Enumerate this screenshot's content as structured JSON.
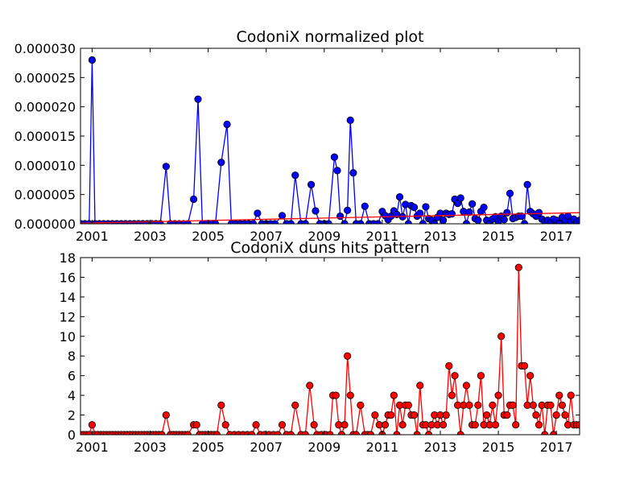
{
  "chart_data": [
    {
      "type": "line",
      "title": "CodoniX normalized plot",
      "xlabel": "",
      "ylabel": "",
      "xlim": [
        2000.6,
        2017.8
      ],
      "ylim": [
        0,
        3e-05
      ],
      "x_ticks": [
        2001,
        2003,
        2005,
        2007,
        2009,
        2011,
        2013,
        2015,
        2017
      ],
      "x_tick_labels": [
        "2001",
        "2003",
        "2005",
        "2007",
        "2009",
        "2011",
        "2013",
        "2015",
        "2017"
      ],
      "y_ticks": [
        0,
        5e-06,
        1e-05,
        1.5e-05,
        2e-05,
        2.5e-05,
        3e-05
      ],
      "y_tick_labels": [
        "0.000000",
        "0.000005",
        "0.000010",
        "0.000015",
        "0.000020",
        "0.000025",
        "0.000030"
      ],
      "grid": false,
      "series": [
        {
          "color": "#0000ff",
          "marker": "circle",
          "x": [
            2000.6,
            2000.75,
            2000.9,
            2001.0,
            2001.1,
            2001.25,
            2001.4,
            2001.55,
            2001.7,
            2001.85,
            2002.0,
            2002.15,
            2002.3,
            2002.45,
            2002.6,
            2002.75,
            2002.9,
            2003.05,
            2003.2,
            2003.35,
            2003.55,
            2003.7,
            2003.85,
            2004.0,
            2004.15,
            2004.3,
            2004.5,
            2004.65,
            2004.8,
            2004.95,
            2005.1,
            2005.25,
            2005.45,
            2005.65,
            2005.8,
            2005.95,
            2006.1,
            2006.25,
            2006.4,
            2006.55,
            2006.7,
            2006.85,
            2007.0,
            2007.15,
            2007.3,
            2007.55,
            2007.7,
            2007.85,
            2008.0,
            2008.2,
            2008.35,
            2008.55,
            2008.7,
            2008.85,
            2009.0,
            2009.15,
            2009.35,
            2009.45,
            2009.55,
            2009.7,
            2009.8,
            2009.9,
            2010.0,
            2010.1,
            2010.25,
            2010.4,
            2010.55,
            2010.7,
            2010.85,
            2011.0,
            2011.1,
            2011.2,
            2011.3,
            2011.4,
            2011.5,
            2011.6,
            2011.7,
            2011.8,
            2011.9,
            2012.0,
            2012.1,
            2012.2,
            2012.3,
            2012.4,
            2012.5,
            2012.6,
            2012.7,
            2012.8,
            2012.9,
            2013.0,
            2013.1,
            2013.2,
            2013.3,
            2013.4,
            2013.5,
            2013.6,
            2013.7,
            2013.8,
            2013.9,
            2014.0,
            2014.1,
            2014.2,
            2014.3,
            2014.4,
            2014.5,
            2014.6,
            2014.7,
            2014.8,
            2014.9,
            2015.0,
            2015.1,
            2015.2,
            2015.3,
            2015.4,
            2015.5,
            2015.6,
            2015.7,
            2015.8,
            2015.9,
            2016.0,
            2016.1,
            2016.2,
            2016.3,
            2016.4,
            2016.5,
            2016.6,
            2016.7,
            2016.8,
            2016.9,
            2017.0,
            2017.1,
            2017.2,
            2017.3,
            2017.4,
            2017.5,
            2017.6,
            2017.7,
            2017.8
          ],
          "y": [
            0,
            0,
            0,
            2.8e-05,
            0,
            0,
            0,
            0,
            0,
            0,
            0,
            0,
            0,
            0,
            0,
            0,
            0,
            0,
            0,
            0,
            9.8e-06,
            0,
            0,
            0,
            0,
            0,
            4.2e-06,
            2.13e-05,
            0,
            0,
            0,
            0,
            1.05e-05,
            1.7e-05,
            0,
            0,
            0,
            0,
            0,
            0,
            1.8e-06,
            0,
            0,
            0,
            0,
            1.4e-06,
            0,
            0,
            8.3e-06,
            0,
            0,
            6.7e-06,
            2.2e-06,
            0,
            0,
            0,
            1.14e-05,
            9.1e-06,
            1.3e-06,
            0,
            2.3e-06,
            1.77e-05,
            8.7e-06,
            0,
            0,
            3e-06,
            0,
            0,
            0,
            2.1e-06,
            1.4e-06,
            7e-07,
            1.3e-06,
            2.2e-06,
            1.6e-06,
            4.6e-06,
            1.2e-06,
            3.3e-06,
            0,
            3.1e-06,
            2.8e-06,
            1.3e-06,
            1.8e-06,
            0,
            2.9e-06,
            9e-07,
            6e-07,
            0,
            1.1e-06,
            1.8e-06,
            6e-07,
            1.8e-06,
            1.6e-06,
            1.7e-06,
            4.2e-06,
            3.5e-06,
            4.4e-06,
            2.1e-06,
            0,
            2e-06,
            3.4e-06,
            9e-07,
            6e-07,
            2.1e-06,
            2.8e-06,
            6e-07,
            0,
            8e-07,
            1.2e-06,
            4e-07,
            1.3e-06,
            7e-07,
            1.9e-06,
            5.2e-06,
            9e-07,
            1.1e-06,
            1.3e-06,
            1.3e-06,
            0,
            6.7e-06,
            2.1e-06,
            1.7e-06,
            1.3e-06,
            1.9e-06,
            8e-07,
            4e-07,
            6e-07,
            2e-07,
            8e-07,
            6e-07,
            0,
            1.1e-06,
            6e-07,
            1.3e-06,
            4e-07,
            8e-07,
            3e-07,
            6e-07
          ]
        },
        {
          "color": "#ff0000",
          "marker": "none",
          "x": [
            2000.6,
            2017.8
          ],
          "y": [
            1e-07,
            1.9e-06
          ]
        }
      ]
    },
    {
      "type": "line",
      "title": "CodoniX duns hits pattern",
      "xlabel": "",
      "ylabel": "",
      "xlim": [
        2000.6,
        2017.8
      ],
      "ylim": [
        0,
        18
      ],
      "x_ticks": [
        2001,
        2003,
        2005,
        2007,
        2009,
        2011,
        2013,
        2015,
        2017
      ],
      "x_tick_labels": [
        "2001",
        "2003",
        "2005",
        "2007",
        "2009",
        "2011",
        "2013",
        "2015",
        "2017"
      ],
      "y_ticks": [
        0,
        2,
        4,
        6,
        8,
        10,
        12,
        14,
        16,
        18
      ],
      "y_tick_labels": [
        "0",
        "2",
        "4",
        "6",
        "8",
        "10",
        "12",
        "14",
        "16",
        "18"
      ],
      "grid": false,
      "series": [
        {
          "color": "#ff0000",
          "marker": "circle",
          "x": [
            2000.6,
            2000.7,
            2000.8,
            2000.9,
            2001.0,
            2001.1,
            2001.2,
            2001.3,
            2001.4,
            2001.5,
            2001.6,
            2001.7,
            2001.8,
            2001.9,
            2002.0,
            2002.1,
            2002.2,
            2002.3,
            2002.4,
            2002.5,
            2002.6,
            2002.7,
            2002.8,
            2002.9,
            2003.0,
            2003.1,
            2003.2,
            2003.3,
            2003.4,
            2003.55,
            2003.7,
            2003.8,
            2003.9,
            2004.0,
            2004.1,
            2004.2,
            2004.3,
            2004.5,
            2004.6,
            2004.7,
            2004.8,
            2004.9,
            2005.0,
            2005.1,
            2005.2,
            2005.3,
            2005.45,
            2005.6,
            2005.75,
            2005.9,
            2006.05,
            2006.2,
            2006.35,
            2006.5,
            2006.65,
            2006.8,
            2006.95,
            2007.1,
            2007.25,
            2007.4,
            2007.55,
            2007.7,
            2007.85,
            2008.0,
            2008.2,
            2008.35,
            2008.5,
            2008.65,
            2008.75,
            2008.9,
            2009.05,
            2009.2,
            2009.3,
            2009.4,
            2009.5,
            2009.6,
            2009.7,
            2009.8,
            2009.9,
            2010.0,
            2010.1,
            2010.25,
            2010.4,
            2010.5,
            2010.6,
            2010.75,
            2010.9,
            2011.0,
            2011.1,
            2011.2,
            2011.3,
            2011.4,
            2011.5,
            2011.6,
            2011.7,
            2011.8,
            2011.9,
            2012.0,
            2012.1,
            2012.2,
            2012.3,
            2012.4,
            2012.5,
            2012.6,
            2012.7,
            2012.8,
            2012.9,
            2013.0,
            2013.1,
            2013.2,
            2013.3,
            2013.4,
            2013.5,
            2013.6,
            2013.7,
            2013.8,
            2013.9,
            2014.0,
            2014.1,
            2014.2,
            2014.3,
            2014.4,
            2014.5,
            2014.6,
            2014.7,
            2014.8,
            2014.9,
            2015.0,
            2015.1,
            2015.2,
            2015.3,
            2015.4,
            2015.5,
            2015.6,
            2015.7,
            2015.8,
            2015.9,
            2016.0,
            2016.1,
            2016.2,
            2016.3,
            2016.4,
            2016.5,
            2016.6,
            2016.7,
            2016.8,
            2016.9,
            2017.0,
            2017.1,
            2017.2,
            2017.3,
            2017.4,
            2017.5,
            2017.6,
            2017.7,
            2017.8
          ],
          "y": [
            0,
            0,
            0,
            0,
            1,
            0,
            0,
            0,
            0,
            0,
            0,
            0,
            0,
            0,
            0,
            0,
            0,
            0,
            0,
            0,
            0,
            0,
            0,
            0,
            0,
            0,
            0,
            0,
            0,
            2,
            0,
            0,
            0,
            0,
            0,
            0,
            0,
            1,
            1,
            0,
            0,
            0,
            0,
            0,
            0,
            0,
            3,
            1,
            0,
            0,
            0,
            0,
            0,
            0,
            1,
            0,
            0,
            0,
            0,
            0,
            1,
            0,
            0,
            3,
            0,
            0,
            5,
            1,
            0,
            0,
            0,
            0,
            4,
            4,
            1,
            0,
            1,
            8,
            4,
            0,
            0,
            3,
            0,
            0,
            0,
            2,
            1,
            0,
            1,
            2,
            2,
            4,
            0,
            3,
            1,
            3,
            3,
            2,
            2,
            0,
            5,
            1,
            1,
            0,
            1,
            2,
            1,
            2,
            1,
            2,
            7,
            4,
            6,
            3,
            0,
            3,
            5,
            3,
            1,
            1,
            3,
            6,
            1,
            2,
            1,
            3,
            1,
            4,
            10,
            2,
            2,
            3,
            3,
            1,
            17,
            7,
            7,
            3,
            6,
            3,
            2,
            1,
            3,
            0,
            3,
            3,
            0,
            2,
            4,
            3,
            2,
            1,
            4,
            1,
            1,
            1
          ]
        }
      ]
    }
  ]
}
